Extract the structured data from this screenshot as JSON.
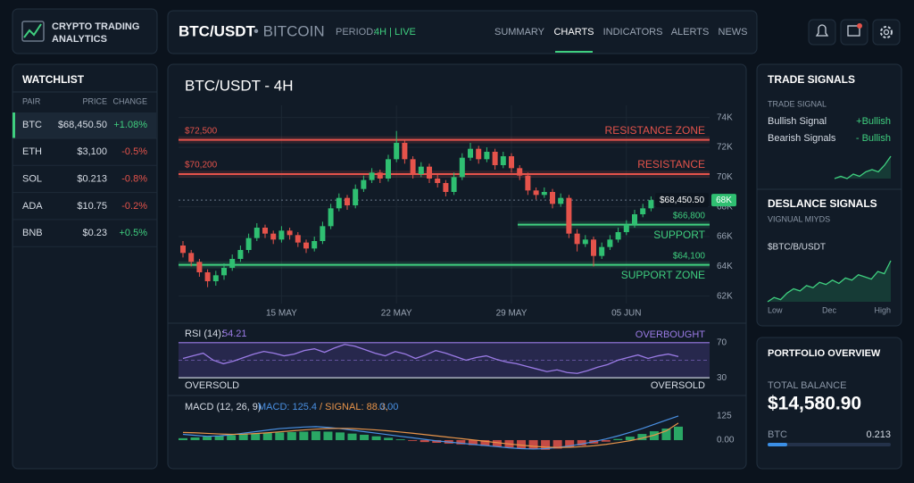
{
  "header": {
    "logo": [
      "CRYPTO TRADING",
      "ANALYTICS"
    ],
    "pair": "BTC/USDT",
    "asset": "• BITCOIN",
    "period_label": "PERIOD:",
    "period": "4H | LIVE",
    "nav": [
      "SUMMARY",
      "CHARTS",
      "INDICATORS",
      "ALERTS",
      "NEWS"
    ]
  },
  "watchlist": {
    "title": "WATCHLIST",
    "columns": [
      "PAIR",
      "PRICE",
      "CHANGE"
    ],
    "rows": [
      [
        "BTC",
        "$68,450.50",
        "+1.08%"
      ],
      [
        "ETH",
        "$3,100",
        "-0.5%"
      ],
      [
        "SOL",
        "$0.213",
        "-0.8%"
      ],
      [
        "ADA",
        "$10.75",
        "-0.2%"
      ],
      [
        "BNB",
        "$0.23",
        "+0.5%"
      ]
    ]
  },
  "main_chart": {
    "type": "candlestick",
    "title": "BTC/USDT - 4H",
    "ylim": [
      61500,
      74400
    ],
    "yticks": [
      {
        "value": 74000,
        "label": "74K"
      },
      {
        "value": 72000,
        "label": "72K"
      },
      {
        "value": 70000,
        "label": "70K"
      },
      {
        "value": 68000,
        "label": "68K"
      },
      {
        "value": 66000,
        "label": "66K"
      },
      {
        "value": 64000,
        "label": "64K"
      },
      {
        "value": 62000,
        "label": "62K"
      }
    ],
    "categories": [
      null,
      null,
      null,
      null,
      null,
      null,
      null,
      null,
      null,
      null,
      null,
      null,
      "15 MAY",
      null,
      null,
      null,
      null,
      null,
      null,
      null,
      null,
      null,
      null,
      null,
      null,
      null,
      "22 MAY",
      null,
      null,
      null,
      null,
      null,
      null,
      null,
      null,
      null,
      null,
      null,
      null,
      null,
      "29 MAY",
      null,
      null,
      null,
      null,
      null,
      null,
      null,
      null,
      null,
      null,
      null,
      null,
      null,
      "05 JUN",
      null,
      null,
      null
    ],
    "candles": [
      [
        65400,
        65700,
        64600,
        64900
      ],
      [
        64900,
        65100,
        64000,
        64300
      ],
      [
        64300,
        64500,
        63300,
        63600
      ],
      [
        63600,
        63800,
        62600,
        63000
      ],
      [
        63000,
        63700,
        62700,
        63400
      ],
      [
        63400,
        64200,
        63100,
        63900
      ],
      [
        63900,
        64800,
        63700,
        64500
      ],
      [
        64500,
        65400,
        64300,
        65100
      ],
      [
        65100,
        66200,
        64900,
        65900
      ],
      [
        65900,
        66900,
        65700,
        66600
      ],
      [
        66600,
        66800,
        65900,
        66200
      ],
      [
        66200,
        66400,
        65500,
        65800
      ],
      [
        65800,
        66700,
        65600,
        66400
      ],
      [
        66400,
        66600,
        65800,
        66100
      ],
      [
        66100,
        66300,
        65300,
        65600
      ],
      [
        65600,
        65800,
        64900,
        65200
      ],
      [
        65200,
        66000,
        65000,
        65700
      ],
      [
        65700,
        67000,
        65500,
        66700
      ],
      [
        66700,
        68200,
        66500,
        67900
      ],
      [
        67900,
        68900,
        67700,
        68600
      ],
      [
        68600,
        68800,
        67800,
        68100
      ],
      [
        68100,
        69500,
        67900,
        69200
      ],
      [
        69200,
        70100,
        69000,
        69800
      ],
      [
        69800,
        70600,
        69600,
        70300
      ],
      [
        70300,
        70500,
        69600,
        69900
      ],
      [
        69900,
        71500,
        69700,
        71200
      ],
      [
        71200,
        73100,
        71000,
        72300
      ],
      [
        72300,
        72500,
        70900,
        71200
      ],
      [
        71200,
        71400,
        69900,
        70200
      ],
      [
        70200,
        71000,
        70000,
        70700
      ],
      [
        70700,
        70900,
        69600,
        69900
      ],
      [
        69900,
        70200,
        69300,
        69600
      ],
      [
        69600,
        69800,
        68700,
        69000
      ],
      [
        69000,
        70300,
        68800,
        70000
      ],
      [
        70000,
        71600,
        69800,
        71300
      ],
      [
        71300,
        72300,
        71100,
        71900
      ],
      [
        71900,
        72100,
        70900,
        71200
      ],
      [
        71200,
        72000,
        71000,
        71700
      ],
      [
        71700,
        71900,
        70500,
        70800
      ],
      [
        70800,
        71700,
        70600,
        71400
      ],
      [
        71400,
        71600,
        70300,
        70600
      ],
      [
        70600,
        70800,
        69800,
        70100
      ],
      [
        70100,
        70300,
        68800,
        69100
      ],
      [
        69100,
        69300,
        68500,
        68800
      ],
      [
        68800,
        69300,
        68600,
        69000
      ],
      [
        69000,
        69200,
        67900,
        68200
      ],
      [
        68200,
        68900,
        68000,
        68600
      ],
      [
        68600,
        68800,
        65900,
        66200
      ],
      [
        66200,
        66500,
        65000,
        65500
      ],
      [
        65500,
        66100,
        65300,
        65800
      ],
      [
        65800,
        66000,
        64000,
        64700
      ],
      [
        64700,
        65600,
        64500,
        65300
      ],
      [
        65300,
        66100,
        65100,
        65800
      ],
      [
        65800,
        66600,
        65600,
        66300
      ],
      [
        66300,
        67100,
        66100,
        66800
      ],
      [
        66800,
        67800,
        66600,
        67500
      ],
      [
        67500,
        68200,
        67300,
        67900
      ],
      [
        67900,
        68700,
        67700,
        68450
      ]
    ],
    "up_color": "#2fbf71",
    "down_color": "#e5534b",
    "levels": [
      {
        "value": 72500,
        "price_label": "$72,500",
        "name": "RESISTANCE ZONE",
        "color": "#e5534b"
      },
      {
        "value": 70200,
        "price_label": "$70,200",
        "name": "RESISTANCE",
        "color": "#e5534b"
      },
      {
        "value": 66800,
        "price_label": "$66,800",
        "name": "SUPPORT",
        "color": "#3fcf7f"
      },
      {
        "value": 64100,
        "price_label": "$64,100",
        "name": "SUPPORT ZONE",
        "color": "#3fcf7f"
      }
    ],
    "last_price": {
      "value": 68450.5,
      "label": "$68,450.50"
    },
    "badge": "68K"
  },
  "rsi": {
    "type": "line",
    "label": "RSI (14):",
    "current": 54.21,
    "ylim": [
      21,
      82
    ],
    "yticks": [
      30,
      70
    ],
    "overbought": "OVERBOUGHT",
    "oversold": [
      "OVERSOLD",
      "OVERSOLD"
    ],
    "color": "#9b7be6",
    "values": [
      52,
      55,
      58,
      50,
      46,
      49,
      53,
      57,
      60,
      58,
      55,
      57,
      61,
      63,
      59,
      64,
      68,
      66,
      62,
      58,
      55,
      60,
      57,
      52,
      56,
      61,
      58,
      54,
      50,
      53,
      55,
      51,
      48,
      46,
      43,
      40,
      37,
      39,
      36,
      35,
      38,
      42,
      45,
      50,
      53,
      56,
      52,
      55,
      57,
      54.21
    ]
  },
  "macd": {
    "type": "bar",
    "label": "MACD (12, 26, 9)",
    "macd_label": "MACD: 125.4",
    "signal_label": "/ SIGNAL: 88.3,",
    "zero_label": "0.00",
    "ylim": [
      -102,
      176
    ],
    "yticks": [
      125,
      {
        "value": 0,
        "label": "0.00"
      }
    ],
    "histogram": [
      10,
      14,
      18,
      22,
      26,
      30,
      34,
      38,
      40,
      42,
      44,
      46,
      44,
      40,
      34,
      28,
      20,
      12,
      4,
      -4,
      -10,
      -14,
      -18,
      -22,
      -26,
      -30,
      -34,
      -38,
      -42,
      -46,
      -50,
      -44,
      -36,
      -28,
      -18,
      -8,
      6,
      18,
      32,
      46,
      60,
      70
    ],
    "series": [
      {
        "name": "MACD",
        "color": "#4a90e2",
        "values": [
          30,
          25,
          20,
          22,
          28,
          36,
          44,
          52,
          60,
          64,
          68,
          70,
          66,
          60,
          52,
          44,
          36,
          28,
          20,
          12,
          4,
          -4,
          -10,
          -16,
          -22,
          -28,
          -34,
          -40,
          -44,
          -46,
          -44,
          -38,
          -30,
          -20,
          -8,
          6,
          22,
          40,
          60,
          82,
          104,
          125.4
        ]
      },
      {
        "name": "SIGNAL",
        "color": "#e8944a",
        "values": [
          40,
          38,
          35,
          32,
          30,
          31,
          34,
          38,
          43,
          48,
          53,
          57,
          60,
          61,
          60,
          57,
          53,
          48,
          42,
          36,
          29,
          22,
          15,
          8,
          1,
          -6,
          -13,
          -20,
          -26,
          -32,
          -36,
          -38,
          -37,
          -34,
          -29,
          -22,
          -13,
          -3,
          10,
          26,
          48,
          88.3
        ]
      }
    ]
  },
  "signals": {
    "title": "TRADE SIGNALS",
    "subtitle": "TRADE SIGNAL",
    "rows": [
      [
        "Bullish Signal",
        "+Bullish"
      ],
      [
        "Bearish Signals",
        "- Bullish"
      ]
    ],
    "sparkline": [
      2,
      3,
      2,
      4,
      3,
      5,
      6,
      5,
      8,
      12
    ]
  },
  "deslance": {
    "title": "DESLANCE SIGNALS",
    "subtitle": "VIGNUAL MIYDS",
    "pair": "$BTC/B/USDT",
    "values": [
      20,
      24,
      22,
      28,
      32,
      30,
      35,
      33,
      38,
      36,
      40,
      37,
      42,
      40,
      45,
      43,
      41,
      48,
      46,
      58
    ],
    "x_labels": [
      "Low",
      "Dec",
      "High"
    ]
  },
  "portfolio": {
    "title": "PORTFOLIO OVERVIEW",
    "label": "TOTAL BALANCE",
    "balance": "$14,580.90",
    "asset": "BTC",
    "amount": "0.213"
  }
}
